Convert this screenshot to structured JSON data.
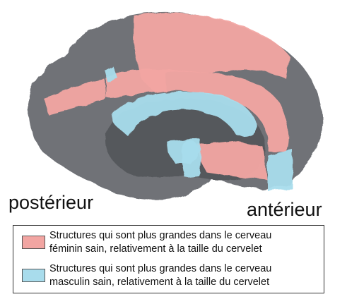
{
  "figure": {
    "orientation": {
      "posterior": "postérieur",
      "anterior": "antérieur"
    }
  },
  "legend": {
    "items": [
      {
        "id": "female",
        "line1": "Structures qui sont plus grandes dans le cerveau",
        "line2": "féminin sain, relativement à la taille du cervelet",
        "color": "#f2a5a2"
      },
      {
        "id": "male",
        "line1": "Structures qui sont plus grandes dans le cerveau",
        "line2": "masculin sain, relativement à la taille du cervelet",
        "color": "#a8dcec"
      }
    ]
  },
  "colors": {
    "cortex_gray": "#6f7277",
    "cortex_dark": "#55585c",
    "female_region": "#f2a5a2",
    "male_region": "#a8dcec",
    "text": "#111111"
  }
}
